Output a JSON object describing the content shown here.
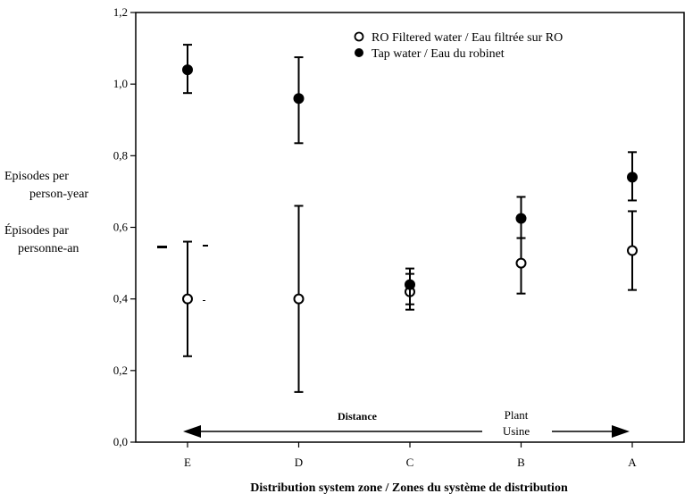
{
  "chart_data": {
    "type": "scatter",
    "xlabel": "Distribution system zone / Zones du système de distribution",
    "ylabel_en": [
      "Episodes per",
      "person-year"
    ],
    "ylabel_fr": [
      "Épisodes par",
      "personne-an"
    ],
    "categories": [
      "E",
      "D",
      "C",
      "B",
      "A"
    ],
    "ylim": [
      0,
      1.2
    ],
    "yticks": [
      "0,0",
      "0,2",
      "0,4",
      "0,6",
      "0,8",
      "1,0",
      "1,2"
    ],
    "legend_position": "top-right",
    "series": [
      {
        "name": "RO Filtered water / Eau filtrée sur RO",
        "marker": "open-circle",
        "values": [
          0.4,
          0.4,
          0.42,
          0.5,
          0.535
        ],
        "err_low": [
          0.24,
          0.14,
          0.37,
          0.415,
          0.425
        ],
        "err_high": [
          0.56,
          0.66,
          0.47,
          0.57,
          0.645
        ]
      },
      {
        "name": "Tap water / Eau du robinet",
        "marker": "filled-circle",
        "values": [
          1.04,
          0.96,
          0.44,
          0.625,
          0.74
        ],
        "err_low": [
          0.975,
          0.835,
          0.385,
          0.57,
          0.675
        ],
        "err_high": [
          1.11,
          1.075,
          0.485,
          0.685,
          0.81
        ]
      }
    ],
    "annotations": {
      "distance": "Distance",
      "plant": "Plant",
      "usine": "Usine"
    }
  }
}
